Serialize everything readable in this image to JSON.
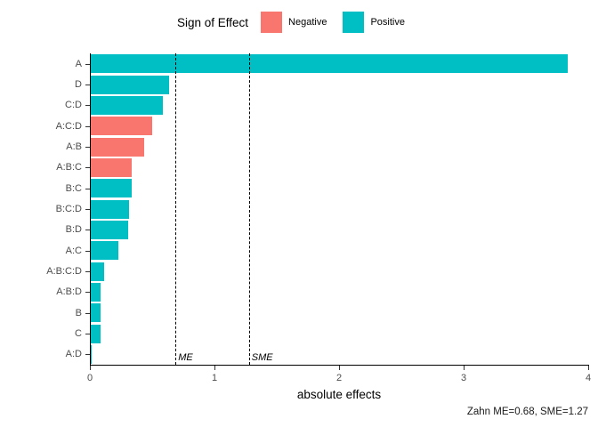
{
  "chart_data": {
    "type": "bar",
    "orientation": "horizontal",
    "xlabel": "absolute effects",
    "ylabel": "",
    "xlim": [
      0,
      4
    ],
    "x_ticks": [
      "0",
      "1",
      "2",
      "3",
      "4"
    ],
    "grid": false,
    "legend": {
      "title": "Sign of Effect",
      "position": "top",
      "entries": [
        {
          "label": "Negative",
          "color": "#F8766D"
        },
        {
          "label": "Positive",
          "color": "#00BFC4"
        }
      ]
    },
    "bars": [
      {
        "category": "A",
        "value": 3.83,
        "sign": "Positive"
      },
      {
        "category": "D",
        "value": 0.63,
        "sign": "Positive"
      },
      {
        "category": "C:D",
        "value": 0.58,
        "sign": "Positive"
      },
      {
        "category": "A:C:D",
        "value": 0.49,
        "sign": "Negative"
      },
      {
        "category": "A:B",
        "value": 0.43,
        "sign": "Negative"
      },
      {
        "category": "A:B:C",
        "value": 0.33,
        "sign": "Negative"
      },
      {
        "category": "B:C",
        "value": 0.33,
        "sign": "Positive"
      },
      {
        "category": "B:C:D",
        "value": 0.31,
        "sign": "Positive"
      },
      {
        "category": "B:D",
        "value": 0.3,
        "sign": "Positive"
      },
      {
        "category": "A:C",
        "value": 0.22,
        "sign": "Positive"
      },
      {
        "category": "A:B:C:D",
        "value": 0.11,
        "sign": "Positive"
      },
      {
        "category": "A:B:D",
        "value": 0.08,
        "sign": "Positive"
      },
      {
        "category": "B",
        "value": 0.08,
        "sign": "Positive"
      },
      {
        "category": "C",
        "value": 0.08,
        "sign": "Positive"
      },
      {
        "category": "A:D",
        "value": 0.01,
        "sign": "Positive"
      }
    ],
    "reference_lines": [
      {
        "label": "ME",
        "value": 0.68
      },
      {
        "label": "SME",
        "value": 1.27
      }
    ],
    "caption": "Zahn ME=0.68, SME=1.27",
    "colors": {
      "positive": "#00BFC4",
      "negative": "#F8766D",
      "axis_line": "#000000",
      "axis_text": "#4D4D4D"
    }
  }
}
